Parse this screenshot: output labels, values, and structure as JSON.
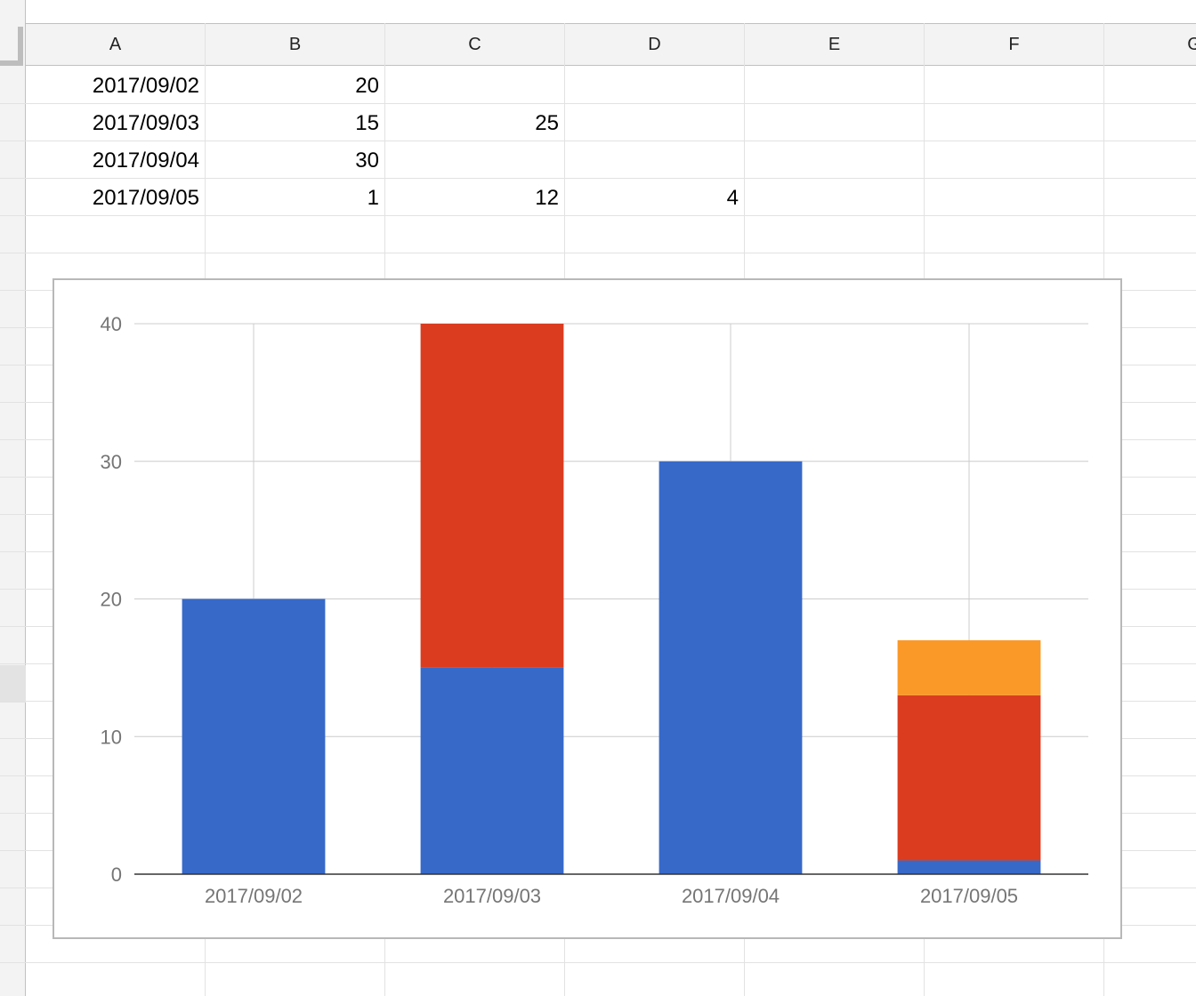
{
  "sheet": {
    "columns": [
      "A",
      "B",
      "C",
      "D",
      "E",
      "F",
      "G"
    ],
    "rows": [
      [
        "2017/09/02",
        "20",
        "",
        ""
      ],
      [
        "2017/09/03",
        "15",
        "25",
        ""
      ],
      [
        "2017/09/04",
        "30",
        "",
        ""
      ],
      [
        "2017/09/05",
        "1",
        "12",
        "4"
      ]
    ]
  },
  "chart_data": {
    "type": "bar",
    "stacked": true,
    "categories": [
      "2017/09/02",
      "2017/09/03",
      "2017/09/04",
      "2017/09/05"
    ],
    "series": [
      {
        "values": [
          20,
          15,
          30,
          1
        ],
        "color": "#3769c9"
      },
      {
        "values": [
          0,
          25,
          0,
          12
        ],
        "color": "#db3c20"
      },
      {
        "values": [
          0,
          0,
          0,
          4
        ],
        "color": "#fb9928"
      }
    ],
    "yticks": [
      0,
      10,
      20,
      30,
      40
    ],
    "ylim": [
      0,
      40
    ],
    "grid": true,
    "legend": "none"
  }
}
